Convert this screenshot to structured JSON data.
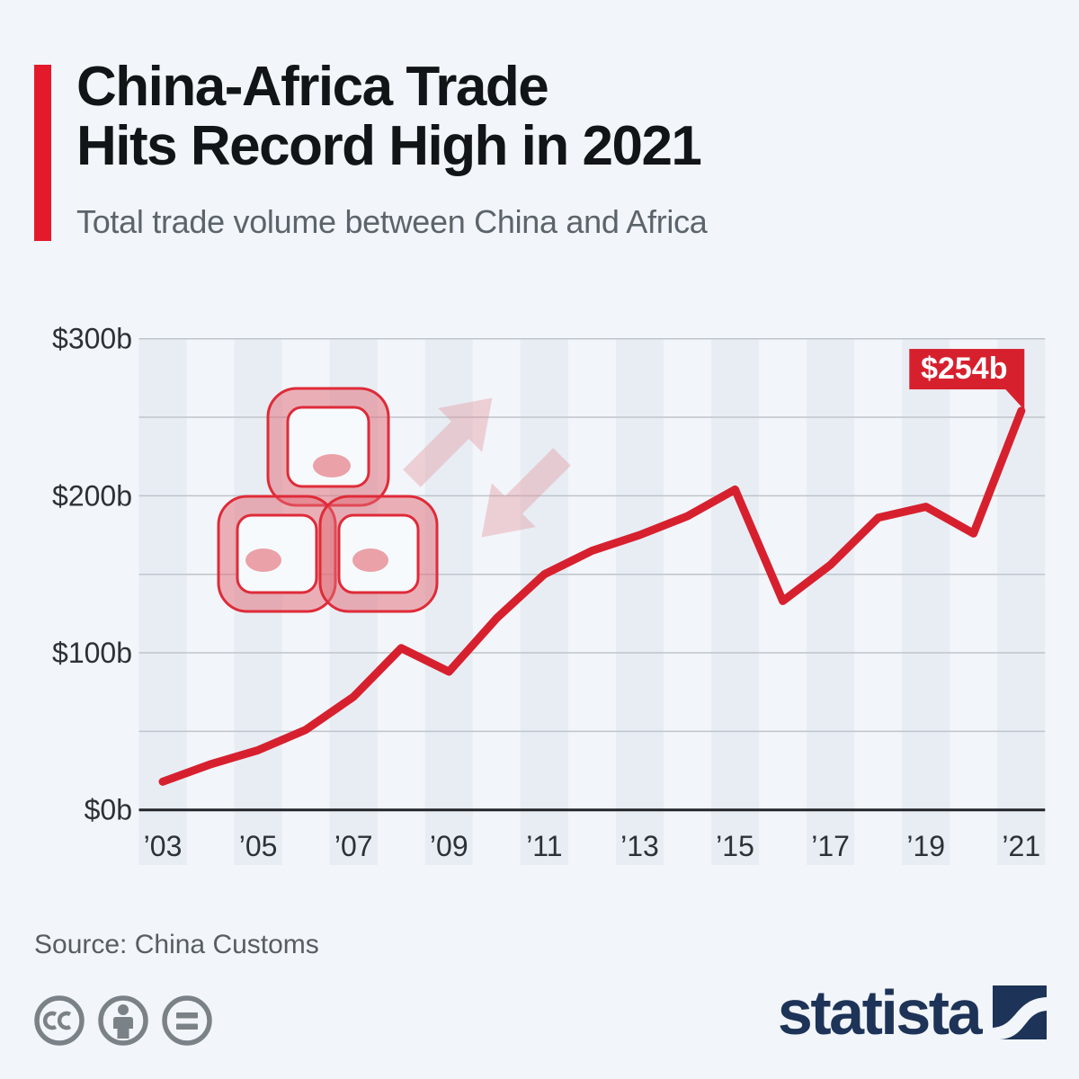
{
  "header": {
    "title_line1": "China-Africa Trade",
    "title_line2": "Hits Record High in 2021",
    "subtitle": "Total trade volume between China and Africa"
  },
  "chart_data": {
    "type": "line",
    "title": "China-Africa Trade Hits Record High in 2021",
    "subtitle": "Total trade volume between China and Africa",
    "unit": "billion US dollars",
    "x": [
      2003,
      2004,
      2005,
      2006,
      2007,
      2008,
      2009,
      2010,
      2011,
      2012,
      2013,
      2014,
      2015,
      2016,
      2017,
      2018,
      2019,
      2020,
      2021
    ],
    "values": [
      18,
      29,
      38,
      51,
      72,
      103,
      88,
      122,
      150,
      165,
      175,
      187,
      204,
      133,
      156,
      186,
      193,
      176,
      254
    ],
    "x_tick_labels": [
      "’03",
      "’05",
      "’07",
      "’09",
      "’11",
      "’13",
      "’15",
      "’17",
      "’19",
      "’21"
    ],
    "x_tick_years": [
      2003,
      2005,
      2007,
      2009,
      2011,
      2013,
      2015,
      2017,
      2019,
      2021
    ],
    "y_tick_labels": [
      {
        "value": 300,
        "label": "$300b"
      },
      {
        "value": 200,
        "label": "$200b"
      },
      {
        "value": 100,
        "label": "$100b"
      },
      {
        "value": 0,
        "label": "$0b"
      }
    ],
    "ylim": [
      0,
      300
    ],
    "grid_step": 50,
    "legend_position": "none",
    "annotation": {
      "label": "$254b",
      "year": 2021,
      "value": 254
    },
    "colors": {
      "line": "#d7202e",
      "callout": "#d7202e",
      "callout_text": "#ffffff",
      "accent_bar": "#e41a2c",
      "stripe": "#e8edf4",
      "gridline": "#bfc5cc",
      "zero_line": "#22262a",
      "axis_label": "#2c3136",
      "background": "#f2f5f9",
      "watermark": "#df2b39"
    }
  },
  "footer": {
    "source": "Source: China Customs",
    "license_icons": [
      "cc-icon",
      "attribution-person-icon",
      "no-derivatives-icon"
    ],
    "brand": "statista"
  }
}
